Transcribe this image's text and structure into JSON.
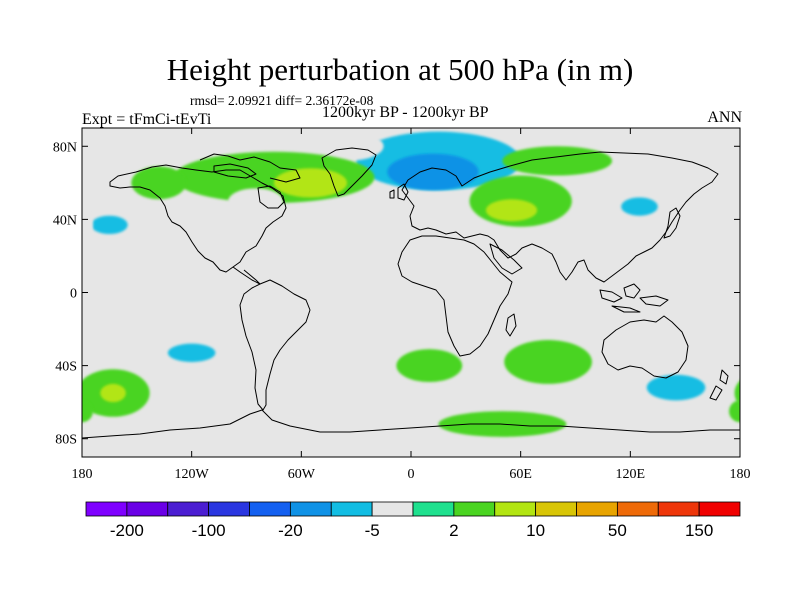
{
  "title": "Height perturbation at 500 hPa (in m)",
  "stats_text": "rmsd= 2.09921 diff= 2.36172e-08",
  "experiment": "Expt = tFmCi-tEvTi",
  "period": "1200kyr BP - 1200kyr BP",
  "season": "ANN",
  "map": {
    "projection": "cylindrical-equidistant",
    "lon_range": [
      -180,
      180
    ],
    "lat_range": [
      -90,
      90
    ],
    "background_color": "#e6e6e6",
    "coastline_color": "#000000",
    "x_ticks": [
      {
        "lon": -180,
        "label": "180"
      },
      {
        "lon": -120,
        "label": "120W"
      },
      {
        "lon": -60,
        "label": "60W"
      },
      {
        "lon": 0,
        "label": "0"
      },
      {
        "lon": 60,
        "label": "60E"
      },
      {
        "lon": 120,
        "label": "120E"
      },
      {
        "lon": 180,
        "label": "180"
      }
    ],
    "y_ticks": [
      {
        "lat": 80,
        "label": "80N"
      },
      {
        "lat": 40,
        "label": "40N"
      },
      {
        "lat": 0,
        "label": "0"
      },
      {
        "lat": -40,
        "label": "40S"
      },
      {
        "lat": -80,
        "label": "80S"
      }
    ]
  },
  "anomalies": [
    {
      "name": "north-atlantic-europe-negative",
      "lon": 15,
      "lat": 72,
      "dlon": 45,
      "dlat": 16,
      "color_index": 6
    },
    {
      "name": "scandinavia-core-negative",
      "lon": 12,
      "lat": 66,
      "dlon": 25,
      "dlat": 10,
      "color_index": 5
    },
    {
      "name": "greenland-negative",
      "lon": -35,
      "lat": 80,
      "dlon": 20,
      "dlat": 8,
      "color_index": 7
    },
    {
      "name": "north-america-positive",
      "lon": -75,
      "lat": 63,
      "dlon": 55,
      "dlat": 14,
      "color_index": 9
    },
    {
      "name": "north-atlantic-positive-core",
      "lon": -55,
      "lat": 60,
      "dlon": 20,
      "dlat": 8,
      "color_index": 10
    },
    {
      "name": "alaska-positive",
      "lon": -138,
      "lat": 60,
      "dlon": 15,
      "dlat": 9,
      "color_index": 9
    },
    {
      "name": "east-pacific-negative",
      "lon": -160,
      "lat": 37,
      "dlon": 18,
      "dlat": 9,
      "color_index": 7
    },
    {
      "name": "east-pacific-negative-core",
      "lon": -165,
      "lat": 37,
      "dlon": 10,
      "dlat": 5,
      "color_index": 6
    },
    {
      "name": "canada-negative",
      "lon": -85,
      "lat": 50,
      "dlon": 15,
      "dlat": 7,
      "color_index": 7
    },
    {
      "name": "central-asia-positive",
      "lon": 60,
      "lat": 50,
      "dlon": 28,
      "dlat": 14,
      "color_index": 9
    },
    {
      "name": "caspian-positive-core",
      "lon": 55,
      "lat": 45,
      "dlon": 14,
      "dlat": 6,
      "color_index": 10
    },
    {
      "name": "siberia-positive",
      "lon": 80,
      "lat": 72,
      "dlon": 30,
      "dlat": 8,
      "color_index": 9
    },
    {
      "name": "east-asia-negative",
      "lon": 130,
      "lat": 50,
      "dlon": 20,
      "dlat": 12,
      "color_index": 7
    },
    {
      "name": "east-asia-negative-core",
      "lon": 125,
      "lat": 47,
      "dlon": 10,
      "dlat": 5,
      "color_index": 6
    },
    {
      "name": "west-pacific-negative",
      "lon": 180,
      "lat": 37,
      "dlon": 6,
      "dlat": 8,
      "color_index": 7
    },
    {
      "name": "south-pacific-negative",
      "lon": -120,
      "lat": -35,
      "dlon": 25,
      "dlat": 10,
      "color_index": 7
    },
    {
      "name": "south-pacific-negative-core",
      "lon": -120,
      "lat": -33,
      "dlon": 13,
      "dlat": 5,
      "color_index": 6
    },
    {
      "name": "south-pacific-positive",
      "lon": -163,
      "lat": -55,
      "dlon": 20,
      "dlat": 13,
      "color_index": 9
    },
    {
      "name": "south-pacific-positive-core",
      "lon": -163,
      "lat": -55,
      "dlon": 7,
      "dlat": 5,
      "color_index": 10
    },
    {
      "name": "southern-ocean-negative-pacific",
      "lon": -110,
      "lat": -72,
      "dlon": 40,
      "dlat": 7,
      "color_index": 7
    },
    {
      "name": "south-atlantic-positive",
      "lon": 10,
      "lat": -40,
      "dlon": 18,
      "dlat": 9,
      "color_index": 9
    },
    {
      "name": "indian-ocean-positive",
      "lon": 75,
      "lat": -38,
      "dlon": 24,
      "dlat": 12,
      "color_index": 9
    },
    {
      "name": "southern-indian-positive",
      "lon": 50,
      "lat": -72,
      "dlon": 35,
      "dlat": 7,
      "color_index": 9
    },
    {
      "name": "south-of-australia-negative",
      "lon": 145,
      "lat": -52,
      "dlon": 28,
      "dlat": 13,
      "color_index": 7
    },
    {
      "name": "south-of-australia-negative-core",
      "lon": 145,
      "lat": -52,
      "dlon": 16,
      "dlat": 7,
      "color_index": 6
    },
    {
      "name": "drake-passage-negative",
      "lon": -38,
      "lat": -52,
      "dlon": 3,
      "dlat": 2,
      "color_index": 7
    },
    {
      "name": "dateline-south-positive",
      "lon": 180,
      "lat": -65,
      "dlon": 6,
      "dlat": 6,
      "color_index": 9
    }
  ],
  "colorbar": {
    "colors": [
      "#7f00ff",
      "#6a00e6",
      "#4b1ed2",
      "#2a36e0",
      "#1460f0",
      "#1092e6",
      "#12bde3",
      "#e6e6e6",
      "#1fe08e",
      "#4ad421",
      "#b2e512",
      "#d8c506",
      "#e8a400",
      "#ee6a08",
      "#ee360a",
      "#f00000"
    ],
    "labels": [
      {
        "after_box": 1,
        "text": "-200"
      },
      {
        "after_box": 3,
        "text": "-100"
      },
      {
        "after_box": 5,
        "text": "-20"
      },
      {
        "after_box": 7,
        "text": "-5"
      },
      {
        "after_box": 9,
        "text": "2"
      },
      {
        "after_box": 11,
        "text": "10"
      },
      {
        "after_box": 13,
        "text": "50"
      },
      {
        "after_box": 15,
        "text": "150"
      }
    ]
  }
}
